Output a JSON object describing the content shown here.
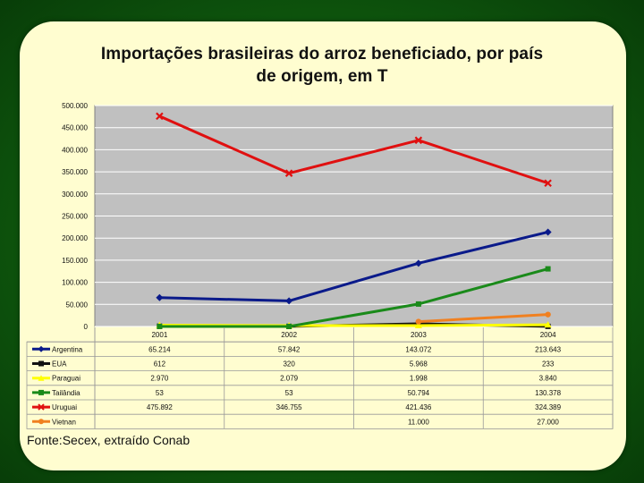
{
  "title_line1": "Importações brasileiras do arroz beneficiado, por país",
  "title_line2": "de origem, em T",
  "source": "Fonte:Secex, extraído Conab",
  "colors": {
    "plot_bg": "#c0c0c0",
    "grid": "#ffffff",
    "background": "#fffdd0",
    "frame": "#1a6e18"
  },
  "chart_data": {
    "type": "line",
    "title": "Importações brasileiras do arroz beneficiado, por país de origem, em T",
    "categories": [
      "2001",
      "2002",
      "2003",
      "2004"
    ],
    "y_ticks": [
      "500.000",
      "450.000",
      "400.000",
      "350.000",
      "300.000",
      "250.000",
      "200.000",
      "150.000",
      "100.000",
      "50.000",
      "0"
    ],
    "ylim": [
      0,
      500000
    ],
    "grid": true,
    "legend": "data-table",
    "series": [
      {
        "name": "Argentina",
        "color": "#0a1a8a",
        "marker": "diamond",
        "values": [
          65214,
          57842,
          143072,
          213643
        ],
        "labels": [
          "65.214",
          "57.842",
          "143.072",
          "213.643"
        ]
      },
      {
        "name": "EUA",
        "color": "#111111",
        "marker": "square",
        "values": [
          612,
          320,
          5968,
          233
        ],
        "labels": [
          "612",
          "320",
          "5.968",
          "233"
        ]
      },
      {
        "name": "Paraguai",
        "color": "#ffff00",
        "marker": "triangle",
        "values": [
          2970,
          2079,
          1998,
          3840
        ],
        "labels": [
          "2.970",
          "2.079",
          "1.998",
          "3.840"
        ]
      },
      {
        "name": "Tailândia",
        "color": "#1a8a1a",
        "marker": "square",
        "values": [
          53,
          53,
          50794,
          130378
        ],
        "labels": [
          "53",
          "53",
          "50.794",
          "130.378"
        ]
      },
      {
        "name": "Uruguai",
        "color": "#e01010",
        "marker": "x",
        "values": [
          475892,
          346755,
          421436,
          324389
        ],
        "labels": [
          "475.892",
          "346.755",
          "421.436",
          "324.389"
        ]
      },
      {
        "name": "Vietnan",
        "color": "#f08020",
        "marker": "circle",
        "values": [
          null,
          null,
          11000,
          27000
        ],
        "labels": [
          "",
          "",
          "11.000",
          "27.000"
        ]
      }
    ]
  }
}
